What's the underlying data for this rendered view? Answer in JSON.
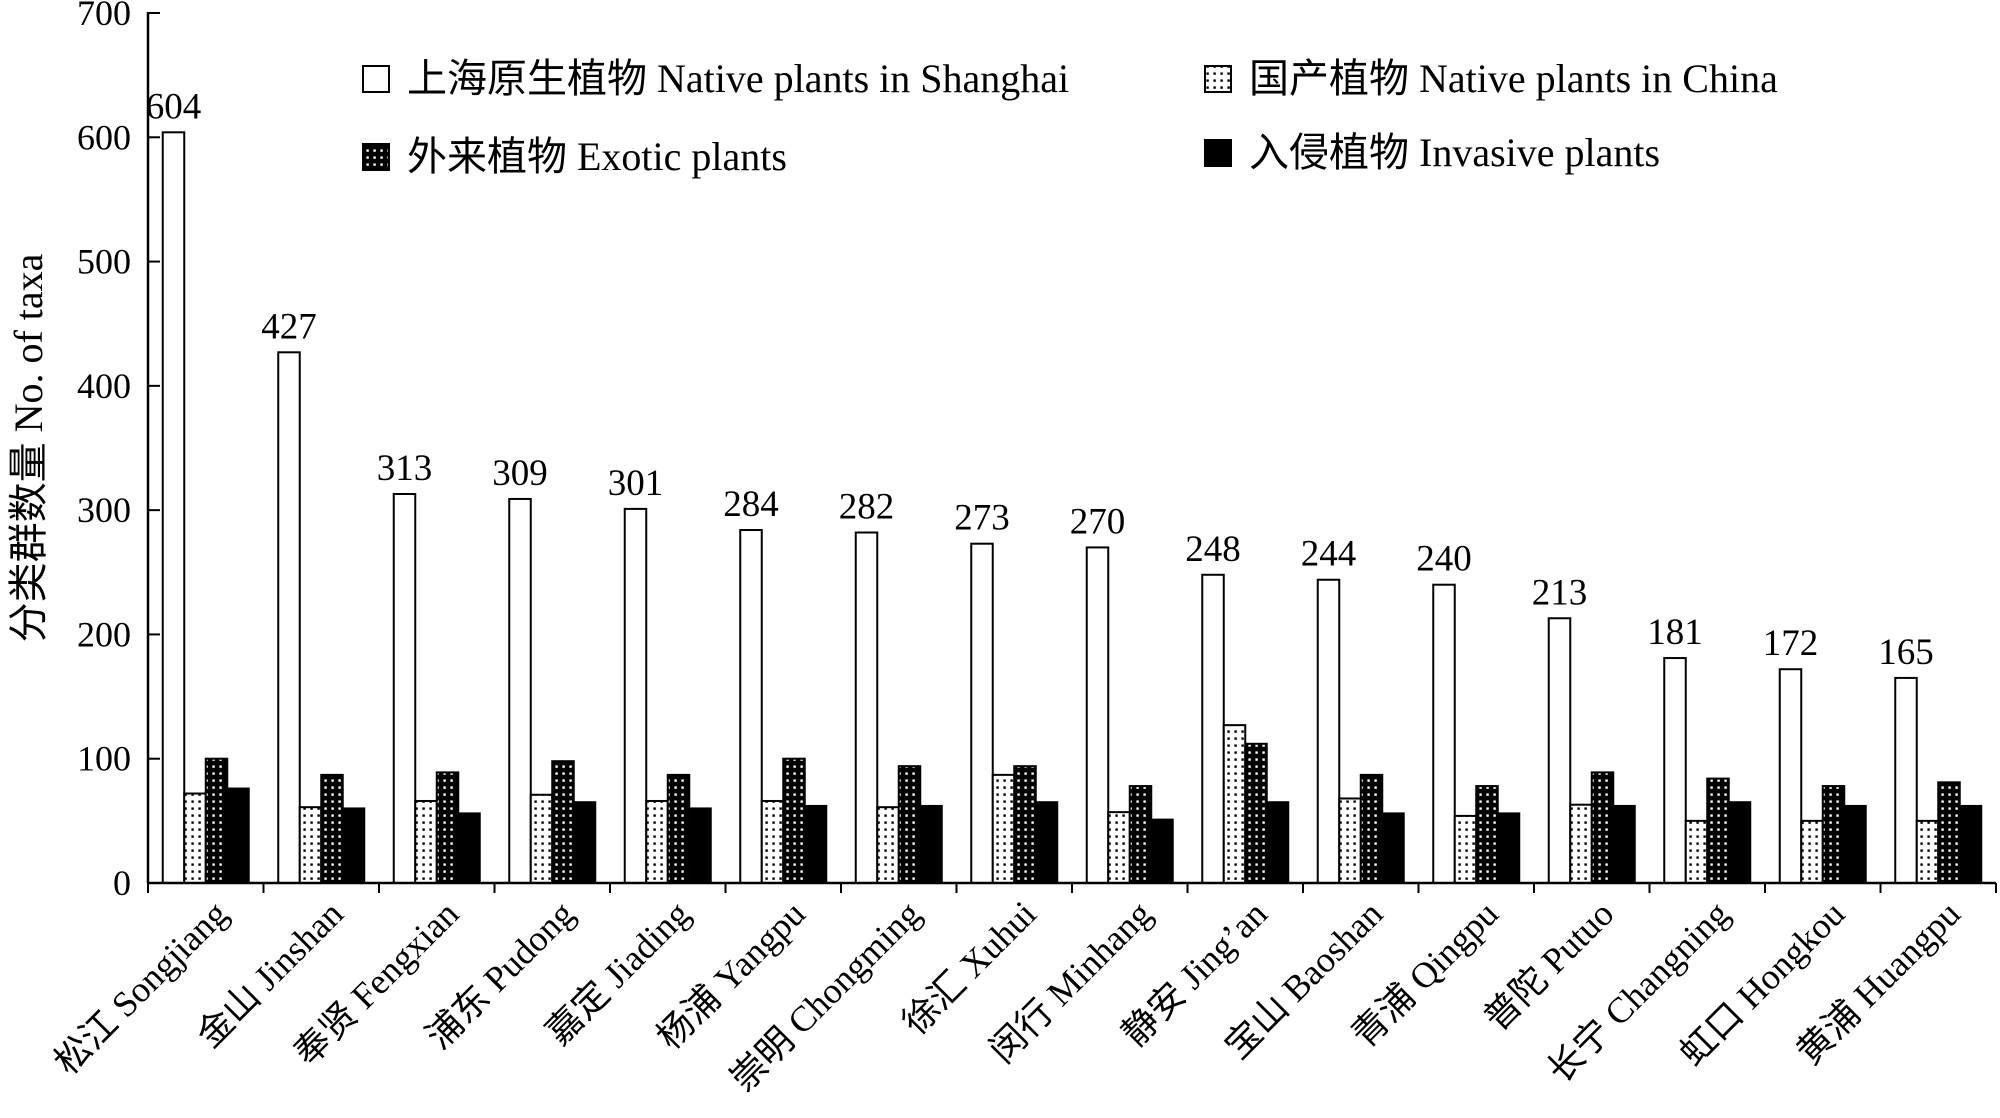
{
  "chart_data": {
    "type": "bar",
    "ylabel": "分类群数量 No. of taxa",
    "ylim": [
      0,
      700
    ],
    "yticks": [
      0,
      100,
      200,
      300,
      400,
      500,
      600,
      700
    ],
    "grid": false,
    "legend_position": "top",
    "categories": [
      "松江 Songjiang",
      "金山 Jinshan",
      "奉贤 Fengxian",
      "浦东 Pudong",
      "嘉定 Jiading",
      "杨浦 Yangpu",
      "崇明 Chongming",
      "徐汇 Xuhui",
      "闵行 Minhang",
      "静安 Jing’an",
      "宝山 Baoshan",
      "青浦 Qingpu",
      "普陀 Putuo",
      "长宁 Changning",
      "虹口 Hongkou",
      "黄浦 Huangpu"
    ],
    "series": [
      {
        "name": "上海原生植物 Native plants in Shanghai",
        "fill": "#ffffff",
        "dots": null,
        "data_labels": true,
        "values": [
          604,
          427,
          313,
          309,
          301,
          284,
          282,
          273,
          270,
          248,
          244,
          240,
          213,
          181,
          172,
          165
        ]
      },
      {
        "name": "国产植物 Native plants in China",
        "fill": "#ffffff",
        "dots": "#000000",
        "data_labels": false,
        "values": [
          72,
          61,
          66,
          71,
          66,
          66,
          61,
          87,
          57,
          127,
          68,
          54,
          63,
          50,
          50,
          50
        ]
      },
      {
        "name": "外来植物 Exotic plants",
        "fill": "#000000",
        "dots": "#ffffff",
        "data_labels": false,
        "values": [
          100,
          87,
          89,
          98,
          87,
          100,
          94,
          94,
          78,
          112,
          87,
          78,
          89,
          84,
          78,
          81
        ]
      },
      {
        "name": "入侵植物 Invasive plants",
        "fill": "#000000",
        "dots": null,
        "data_labels": false,
        "values": [
          76,
          60,
          56,
          65,
          60,
          62,
          62,
          65,
          51,
          65,
          56,
          56,
          62,
          65,
          62,
          62
        ]
      }
    ]
  }
}
